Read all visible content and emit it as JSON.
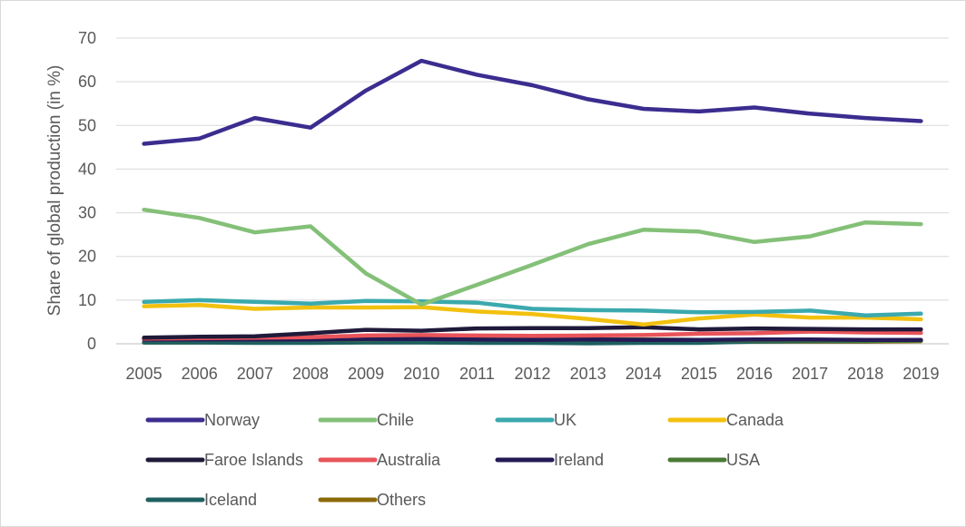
{
  "chart_data": {
    "type": "line",
    "title": "",
    "xlabel": "",
    "ylabel": "Share of global production (in %)",
    "ylim": [
      0,
      70
    ],
    "yticks": [
      0,
      10,
      20,
      30,
      40,
      50,
      60,
      70
    ],
    "grid": true,
    "legend_position": "bottom",
    "x": [
      "2005",
      "2006",
      "2007",
      "2008",
      "2009",
      "2010",
      "2011",
      "2012",
      "2013",
      "2014",
      "2015",
      "2016",
      "2017",
      "2018",
      "2019"
    ],
    "series": [
      {
        "name": "Norway",
        "color": "#3b2d8f",
        "values": [
          45.8,
          47.0,
          51.7,
          49.5,
          58.0,
          64.8,
          61.6,
          59.2,
          56.0,
          53.8,
          53.2,
          54.1,
          52.7,
          51.7,
          51.0
        ]
      },
      {
        "name": "Chile",
        "color": "#84c078",
        "values": [
          30.7,
          28.8,
          25.5,
          26.9,
          16.1,
          9.0,
          13.5,
          18.1,
          22.8,
          26.1,
          25.7,
          23.3,
          24.6,
          27.8,
          27.4
        ]
      },
      {
        "name": "UK",
        "color": "#3ba9ad",
        "values": [
          9.6,
          10.0,
          9.6,
          9.2,
          9.8,
          9.7,
          9.4,
          8.0,
          7.7,
          7.6,
          7.2,
          7.3,
          7.6,
          6.5,
          6.9
        ]
      },
      {
        "name": "Canada",
        "color": "#f2c10f",
        "values": [
          8.6,
          8.9,
          8.0,
          8.3,
          8.3,
          8.4,
          7.4,
          6.8,
          5.7,
          4.4,
          5.8,
          6.7,
          6.0,
          6.0,
          5.6
        ]
      },
      {
        "name": "Faroe Islands",
        "color": "#1f1a3a",
        "values": [
          1.4,
          1.6,
          1.7,
          2.4,
          3.2,
          3.0,
          3.5,
          3.6,
          3.6,
          3.8,
          3.3,
          3.5,
          3.4,
          3.3,
          3.3
        ]
      },
      {
        "name": "Australia",
        "color": "#e8545a",
        "values": [
          1.2,
          1.3,
          1.4,
          1.5,
          1.9,
          2.0,
          1.9,
          1.8,
          1.9,
          2.0,
          2.3,
          2.4,
          2.8,
          2.6,
          2.5
        ]
      },
      {
        "name": "Ireland",
        "color": "#241a55",
        "values": [
          1.0,
          1.0,
          1.0,
          1.0,
          1.1,
          1.1,
          1.0,
          0.9,
          1.0,
          0.9,
          0.9,
          1.0,
          1.0,
          0.9,
          0.9
        ]
      },
      {
        "name": "USA",
        "color": "#4a7a35",
        "values": [
          1.3,
          1.1,
          1.0,
          1.0,
          1.0,
          1.2,
          1.2,
          1.1,
          1.0,
          1.0,
          0.9,
          0.8,
          0.8,
          0.7,
          0.7
        ]
      },
      {
        "name": "Iceland",
        "color": "#1f5f60",
        "values": [
          0.3,
          0.3,
          0.2,
          0.2,
          0.3,
          0.3,
          0.2,
          0.2,
          0.1,
          0.2,
          0.2,
          0.5,
          0.6,
          0.6,
          0.8
        ]
      },
      {
        "name": "Others",
        "color": "#8c6a0a",
        "values": [
          0.3,
          0.3,
          0.4,
          0.4,
          0.5,
          0.4,
          0.4,
          0.4,
          0.4,
          0.4,
          0.5,
          0.5,
          0.5,
          0.5,
          0.6
        ]
      }
    ]
  }
}
